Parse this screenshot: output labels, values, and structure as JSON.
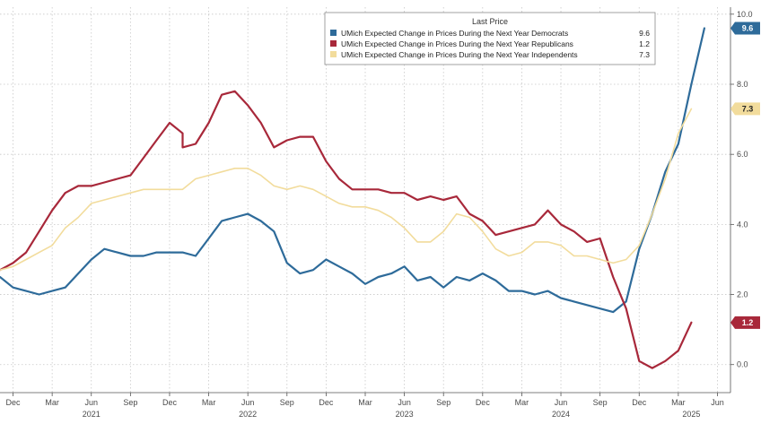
{
  "colors": {
    "democrats": "#2e6b9a",
    "republicans": "#a8283a",
    "independents": "#f2dc9c",
    "grid": "#c8c8c8",
    "axis": "#555555"
  },
  "chart_data": {
    "type": "line",
    "title": "",
    "xlabel": "",
    "ylabel": "",
    "ylim": [
      -0.8,
      10.2
    ],
    "y_ticks": [
      0.0,
      2.0,
      4.0,
      6.0,
      8.0,
      10.0
    ],
    "y_tick_labels": [
      "0.0",
      "2.0",
      "4.0",
      "6.0",
      "8.0",
      "10.0"
    ],
    "x_ticks": [
      {
        "label": "Dec",
        "date": "2020-12"
      },
      {
        "label": "Mar",
        "date": "2021-03"
      },
      {
        "label": "Jun",
        "date": "2021-06"
      },
      {
        "label": "Sep",
        "date": "2021-09"
      },
      {
        "label": "Dec",
        "date": "2021-12"
      },
      {
        "label": "Mar",
        "date": "2022-03"
      },
      {
        "label": "Jun",
        "date": "2022-06"
      },
      {
        "label": "Sep",
        "date": "2022-09"
      },
      {
        "label": "Dec",
        "date": "2022-12"
      },
      {
        "label": "Mar",
        "date": "2023-03"
      },
      {
        "label": "Jun",
        "date": "2023-06"
      },
      {
        "label": "Sep",
        "date": "2023-09"
      },
      {
        "label": "Dec",
        "date": "2023-12"
      },
      {
        "label": "Mar",
        "date": "2024-03"
      },
      {
        "label": "Jun",
        "date": "2024-06"
      },
      {
        "label": "Sep",
        "date": "2024-09"
      },
      {
        "label": "Dec",
        "date": "2024-12"
      },
      {
        "label": "Mar",
        "date": "2025-03"
      },
      {
        "label": "Jun",
        "date": "2025-06"
      }
    ],
    "year_labels": [
      {
        "label": "2021",
        "date": "2021-06"
      },
      {
        "label": "2022",
        "date": "2022-06"
      },
      {
        "label": "2023",
        "date": "2023-06"
      },
      {
        "label": "2024",
        "date": "2024-06"
      },
      {
        "label": "2025",
        "date": "2025-04"
      }
    ],
    "gridlines": true,
    "legend": {
      "title": "Last Price",
      "placement": "top-right",
      "entries": [
        {
          "label": "UMich Expected Change in Prices During the Next Year Democrats",
          "value": "9.6"
        },
        {
          "label": "UMich Expected Change in Prices During the Next Year Republicans",
          "value": "1.2"
        },
        {
          "label": "UMich Expected Change in Prices During the Next Year Independents",
          "value": "7.3"
        }
      ]
    },
    "last_value_tags": [
      "9.6",
      "1.2",
      "7.3"
    ],
    "series": [
      {
        "name": "UMich Expected Change in Prices During the Next Year Democrats",
        "points": [
          [
            "2020-11",
            2.5
          ],
          [
            "2020-12",
            2.2
          ],
          [
            "2021-01",
            2.1
          ],
          [
            "2021-02",
            2.0
          ],
          [
            "2021-03",
            2.1
          ],
          [
            "2021-04",
            2.2
          ],
          [
            "2021-05",
            2.6
          ],
          [
            "2021-06",
            3.0
          ],
          [
            "2021-07",
            3.3
          ],
          [
            "2021-08",
            3.2
          ],
          [
            "2021-09",
            3.1
          ],
          [
            "2021-10",
            3.1
          ],
          [
            "2021-11",
            3.2
          ],
          [
            "2021-12",
            3.2
          ],
          [
            "2022-01",
            3.2
          ],
          [
            "2022-02",
            3.1
          ],
          [
            "2022-03",
            3.6
          ],
          [
            "2022-04",
            4.1
          ],
          [
            "2022-05",
            4.2
          ],
          [
            "2022-06",
            4.3
          ],
          [
            "2022-07",
            4.1
          ],
          [
            "2022-08",
            3.8
          ],
          [
            "2022-09",
            2.9
          ],
          [
            "2022-10",
            2.6
          ],
          [
            "2022-11",
            2.7
          ],
          [
            "2022-12",
            3.0
          ],
          [
            "2023-01",
            2.8
          ],
          [
            "2023-02",
            2.6
          ],
          [
            "2023-03",
            2.3
          ],
          [
            "2023-04",
            2.5
          ],
          [
            "2023-05",
            2.6
          ],
          [
            "2023-06",
            2.8
          ],
          [
            "2023-07",
            2.4
          ],
          [
            "2023-08",
            2.5
          ],
          [
            "2023-09",
            2.2
          ],
          [
            "2023-10",
            2.5
          ],
          [
            "2023-11",
            2.4
          ],
          [
            "2023-12",
            2.6
          ],
          [
            "2024-01",
            2.4
          ],
          [
            "2024-02",
            2.1
          ],
          [
            "2024-03",
            2.1
          ],
          [
            "2024-04",
            2.0
          ],
          [
            "2024-05",
            2.1
          ],
          [
            "2024-06",
            1.9
          ],
          [
            "2024-07",
            1.8
          ],
          [
            "2024-08",
            1.7
          ],
          [
            "2024-09",
            1.6
          ],
          [
            "2024-10",
            1.5
          ],
          [
            "2024-11",
            1.8
          ],
          [
            "2024-12",
            3.3
          ],
          [
            "2025-01",
            4.3
          ],
          [
            "2025-02",
            5.5
          ],
          [
            "2025-03",
            6.3
          ],
          [
            "2025-04",
            8.0
          ],
          [
            "2025-05",
            9.6
          ]
        ]
      },
      {
        "name": "UMich Expected Change in Prices During the Next Year Republicans",
        "points": [
          [
            "2020-11",
            2.7
          ],
          [
            "2020-12",
            2.9
          ],
          [
            "2021-01",
            3.2
          ],
          [
            "2021-02",
            3.8
          ],
          [
            "2021-03",
            4.4
          ],
          [
            "2021-04",
            4.9
          ],
          [
            "2021-05",
            5.1
          ],
          [
            "2021-06",
            5.1
          ],
          [
            "2021-07",
            5.2
          ],
          [
            "2021-08",
            5.3
          ],
          [
            "2021-09",
            5.4
          ],
          [
            "2021-10",
            5.9
          ],
          [
            "2021-11",
            6.4
          ],
          [
            "2021-12",
            6.9
          ],
          [
            "2021-13",
            6.6
          ],
          [
            "2022-01",
            6.2
          ],
          [
            "2022-02",
            6.3
          ],
          [
            "2022-03",
            6.9
          ],
          [
            "2022-04",
            7.7
          ],
          [
            "2022-05",
            7.8
          ],
          [
            "2022-06",
            7.4
          ],
          [
            "2022-07",
            6.9
          ],
          [
            "2022-08",
            6.2
          ],
          [
            "2022-09",
            6.4
          ],
          [
            "2022-10",
            6.5
          ],
          [
            "2022-11",
            6.5
          ],
          [
            "2022-12",
            5.8
          ],
          [
            "2023-01",
            5.3
          ],
          [
            "2023-02",
            5.0
          ],
          [
            "2023-03",
            5.0
          ],
          [
            "2023-04",
            5.0
          ],
          [
            "2023-05",
            4.9
          ],
          [
            "2023-06",
            4.9
          ],
          [
            "2023-07",
            4.7
          ],
          [
            "2023-08",
            4.8
          ],
          [
            "2023-09",
            4.7
          ],
          [
            "2023-10",
            4.8
          ],
          [
            "2023-11",
            4.3
          ],
          [
            "2023-12",
            4.1
          ],
          [
            "2024-01",
            3.7
          ],
          [
            "2024-02",
            3.8
          ],
          [
            "2024-03",
            3.9
          ],
          [
            "2024-04",
            4.0
          ],
          [
            "2024-05",
            4.4
          ],
          [
            "2024-06",
            4.0
          ],
          [
            "2024-07",
            3.8
          ],
          [
            "2024-08",
            3.5
          ],
          [
            "2024-09",
            3.6
          ],
          [
            "2024-10",
            2.5
          ],
          [
            "2024-11",
            1.6
          ],
          [
            "2024-12",
            0.1
          ],
          [
            "2025-01",
            -0.1
          ],
          [
            "2025-02",
            0.1
          ],
          [
            "2025-03",
            0.4
          ],
          [
            "2025-04",
            1.2
          ]
        ]
      },
      {
        "name": "UMich Expected Change in Prices During the Next Year Independents",
        "points": [
          [
            "2020-11",
            2.7
          ],
          [
            "2020-12",
            2.8
          ],
          [
            "2021-01",
            3.0
          ],
          [
            "2021-02",
            3.2
          ],
          [
            "2021-03",
            3.4
          ],
          [
            "2021-04",
            3.9
          ],
          [
            "2021-05",
            4.2
          ],
          [
            "2021-06",
            4.6
          ],
          [
            "2021-07",
            4.7
          ],
          [
            "2021-08",
            4.8
          ],
          [
            "2021-09",
            4.9
          ],
          [
            "2021-10",
            5.0
          ],
          [
            "2021-11",
            5.0
          ],
          [
            "2021-12",
            5.0
          ],
          [
            "2022-01",
            5.0
          ],
          [
            "2022-02",
            5.3
          ],
          [
            "2022-03",
            5.4
          ],
          [
            "2022-04",
            5.5
          ],
          [
            "2022-05",
            5.6
          ],
          [
            "2022-06",
            5.6
          ],
          [
            "2022-07",
            5.4
          ],
          [
            "2022-08",
            5.1
          ],
          [
            "2022-09",
            5.0
          ],
          [
            "2022-10",
            5.1
          ],
          [
            "2022-11",
            5.0
          ],
          [
            "2022-12",
            4.8
          ],
          [
            "2023-01",
            4.6
          ],
          [
            "2023-02",
            4.5
          ],
          [
            "2023-03",
            4.5
          ],
          [
            "2023-04",
            4.4
          ],
          [
            "2023-05",
            4.2
          ],
          [
            "2023-06",
            3.9
          ],
          [
            "2023-07",
            3.5
          ],
          [
            "2023-08",
            3.5
          ],
          [
            "2023-09",
            3.8
          ],
          [
            "2023-10",
            4.3
          ],
          [
            "2023-11",
            4.2
          ],
          [
            "2023-12",
            3.8
          ],
          [
            "2024-01",
            3.3
          ],
          [
            "2024-02",
            3.1
          ],
          [
            "2024-03",
            3.2
          ],
          [
            "2024-04",
            3.5
          ],
          [
            "2024-05",
            3.5
          ],
          [
            "2024-06",
            3.4
          ],
          [
            "2024-07",
            3.1
          ],
          [
            "2024-08",
            3.1
          ],
          [
            "2024-09",
            3.0
          ],
          [
            "2024-10",
            2.9
          ],
          [
            "2024-11",
            3.0
          ],
          [
            "2024-12",
            3.4
          ],
          [
            "2025-01",
            4.3
          ],
          [
            "2025-02",
            5.3
          ],
          [
            "2025-03",
            6.6
          ],
          [
            "2025-04",
            7.3
          ]
        ]
      }
    ]
  }
}
